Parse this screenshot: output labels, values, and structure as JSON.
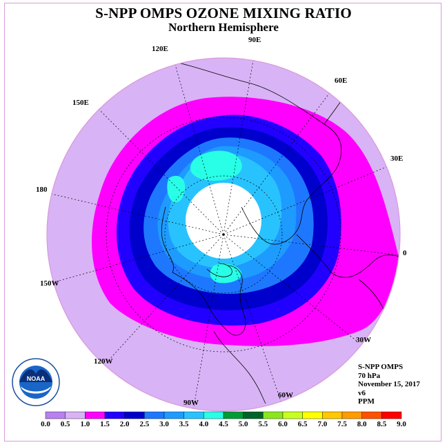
{
  "title": "S-NPP OMPS OZONE MIXING RATIO",
  "subtitle": "Northern Hemisphere",
  "longitude_labels": {
    "l90e": "90E",
    "l60e": "60E",
    "l30e": "30E",
    "l0": "0",
    "l30w": "30W",
    "l60w": "60W",
    "l90w": "90W",
    "l120w": "120W",
    "l150w": "150W",
    "l180": "180",
    "l150e": "150E",
    "l120e": "120E"
  },
  "info": {
    "instrument": "S-NPP OMPS",
    "level": "70 hPa",
    "date": "November 15, 2017",
    "version": "v6",
    "units": "PPM"
  },
  "logo_text": "NOAA",
  "logo_ring_text": "NATIONAL OCEANIC AND ATMOSPHERIC ADMINISTRATION · U.S. DEPARTMENT OF COMMERCE",
  "colorbar": {
    "ticks": [
      "0.0",
      "0.5",
      "1.0",
      "1.5",
      "2.0",
      "2.5",
      "3.0",
      "3.5",
      "4.0",
      "4.5",
      "5.0",
      "5.5",
      "6.0",
      "6.5",
      "7.0",
      "7.5",
      "8.0",
      "8.5",
      "9.0"
    ],
    "colors": [
      "#b980f0",
      "#d8b3f5",
      "#ff00ff",
      "#2200ff",
      "#0000cc",
      "#1e78ff",
      "#1e9bff",
      "#28c3ff",
      "#28ffe6",
      "#009b37",
      "#006428",
      "#8ce61e",
      "#c8ff1e",
      "#ffff00",
      "#ffc800",
      "#ff9b00",
      "#ff5000",
      "#ff0000",
      "#8c5a3c"
    ]
  },
  "contour_colors": {
    "outer": "#d8b3f5",
    "magenta": "#ff00ff",
    "deep_blue": "#2200ff",
    "blue": "#0000cc",
    "mid_blue": "#1e78ff",
    "light_blue": "#1e9bff",
    "sky": "#28c3ff",
    "cyan": "#28ffe6",
    "pole_hole": "#ffffff"
  }
}
